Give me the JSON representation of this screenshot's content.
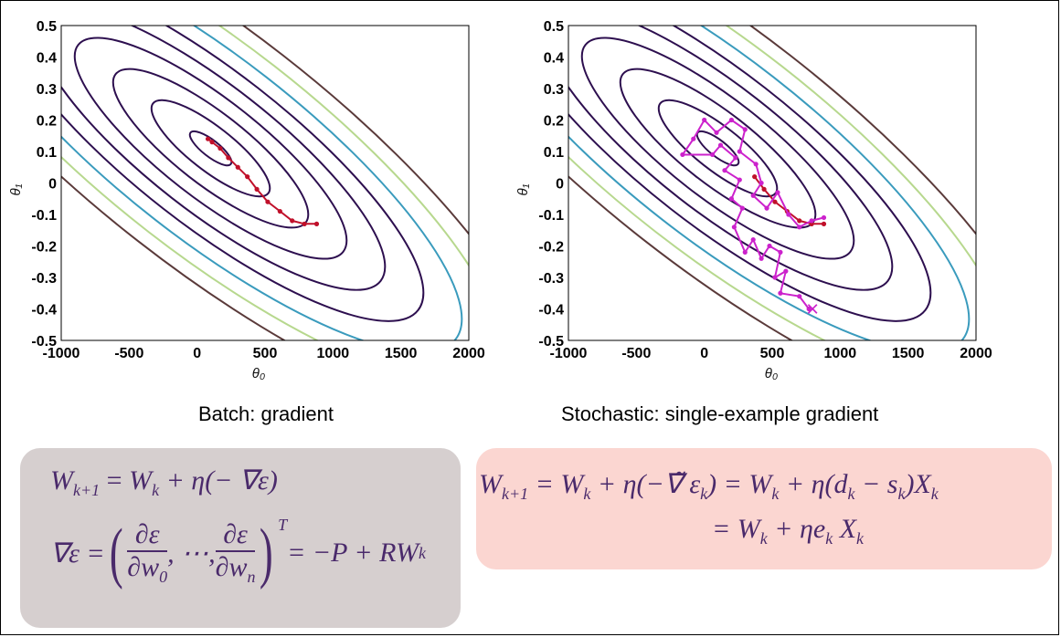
{
  "captions": {
    "left": "Batch: gradient",
    "right": "Stochastic: single-example gradient"
  },
  "plots": [
    {
      "id": "batch",
      "xticks": [
        "-1000",
        "-500",
        "0",
        "500",
        "1000",
        "1500",
        "2000"
      ],
      "yticks": [
        "0.5",
        "0.4",
        "0.3",
        "0.2",
        "0.1",
        "0",
        "-0.1",
        "-0.2",
        "-0.3",
        "-0.4",
        "-0.5"
      ],
      "xlabel": "θ₀",
      "ylabel": "θ₁",
      "path_color": "#c0102a",
      "path": [
        [
          880,
          -0.13
        ],
        [
          790,
          -0.13
        ],
        [
          700,
          -0.12
        ],
        [
          610,
          -0.09
        ],
        [
          520,
          -0.06
        ],
        [
          440,
          -0.02
        ],
        [
          370,
          0.02
        ],
        [
          300,
          0.05
        ],
        [
          230,
          0.08
        ],
        [
          170,
          0.11
        ],
        [
          110,
          0.13
        ],
        [
          80,
          0.14
        ]
      ]
    },
    {
      "id": "stochastic",
      "xticks": [
        "-1000",
        "-500",
        "0",
        "500",
        "1000",
        "1500",
        "2000"
      ],
      "yticks": [
        "0.5",
        "0.4",
        "0.3",
        "0.2",
        "0.1",
        "0",
        "-0.1",
        "-0.2",
        "-0.3",
        "-0.4",
        "-0.5"
      ],
      "xlabel": "θ₀",
      "ylabel": "θ₁",
      "path_color": "#cc22cc",
      "path": [
        [
          770,
          -0.4
        ],
        [
          700,
          -0.36
        ],
        [
          560,
          -0.35
        ],
        [
          600,
          -0.28
        ],
        [
          520,
          -0.3
        ],
        [
          560,
          -0.22
        ],
        [
          480,
          -0.2
        ],
        [
          420,
          -0.24
        ],
        [
          360,
          -0.18
        ],
        [
          300,
          -0.22
        ],
        [
          220,
          -0.14
        ],
        [
          280,
          -0.08
        ],
        [
          200,
          -0.05
        ],
        [
          260,
          0.01
        ],
        [
          150,
          0.04
        ],
        [
          230,
          0.08
        ],
        [
          120,
          0.12
        ],
        [
          60,
          0.09
        ],
        [
          -160,
          0.09
        ],
        [
          -80,
          0.14
        ],
        [
          0,
          0.2
        ],
        [
          90,
          0.16
        ],
        [
          200,
          0.2
        ],
        [
          300,
          0.17
        ],
        [
          260,
          0.1
        ],
        [
          380,
          0.06
        ],
        [
          420,
          0
        ],
        [
          360,
          -0.04
        ],
        [
          460,
          -0.08
        ],
        [
          540,
          -0.03
        ],
        [
          620,
          -0.1
        ],
        [
          700,
          -0.14
        ],
        [
          790,
          -0.12
        ],
        [
          880,
          -0.11
        ]
      ],
      "batch_overlay": [
        [
          880,
          -0.13
        ],
        [
          790,
          -0.13
        ],
        [
          700,
          -0.12
        ],
        [
          610,
          -0.09
        ],
        [
          520,
          -0.06
        ],
        [
          440,
          -0.02
        ],
        [
          370,
          0.02
        ]
      ],
      "end_marker": "×"
    }
  ],
  "contours": {
    "center": [
      100,
      0.11
    ],
    "colors": [
      "#2d0f4f",
      "#2d0f4f",
      "#2d0f4f",
      "#2d0f4f",
      "#2d0f4f",
      "#2d0f4f",
      "#3a9bbd",
      "#b7d88e",
      "#5a3a3a"
    ]
  },
  "colors": {
    "left_box": "#d6cfcf",
    "right_box": "#fbd6d1",
    "equation_ink": "#4a2a6b"
  },
  "equations": {
    "left": {
      "l1_W": "W",
      "l1_sub": "k+1",
      "l1_mid": " = ",
      "l1_W2": "W",
      "l1_sub2": "k",
      "l1_rest": " + η(− ∇ε)",
      "l2_lhs": "∇ε = ",
      "l2_frac1_num": "∂ε",
      "l2_frac1_den": "∂w",
      "l2_frac1_sub": "0",
      "l2_dots": ", ⋯, ",
      "l2_frac2_num": "∂ε",
      "l2_frac2_den": "∂w",
      "l2_frac2_sub": "n",
      "l2_T": "T",
      "l2_rhs": " = −P + RW",
      "l2_rhs_sub": "k"
    },
    "right": {
      "r1_W": "W",
      "r1_sub": "k+1",
      "r1_a": " = W",
      "r1_sub2": "k",
      "r1_b": " + η(−",
      "r1_grad": "∇̃",
      "r1_c": " ε",
      "r1_sub3": "k",
      "r1_d": ") = W",
      "r1_sub4": "k",
      "r1_e": " + η(d",
      "r1_sub5": "k",
      "r1_f": " − s",
      "r1_sub6": "k",
      "r1_g": ")X",
      "r1_sub7": "k",
      "r2_a": "= W",
      "r2_sub1": "k",
      "r2_b": " + ηe",
      "r2_sub2": "k",
      "r2_c": " X",
      "r2_sub3": "k"
    }
  }
}
